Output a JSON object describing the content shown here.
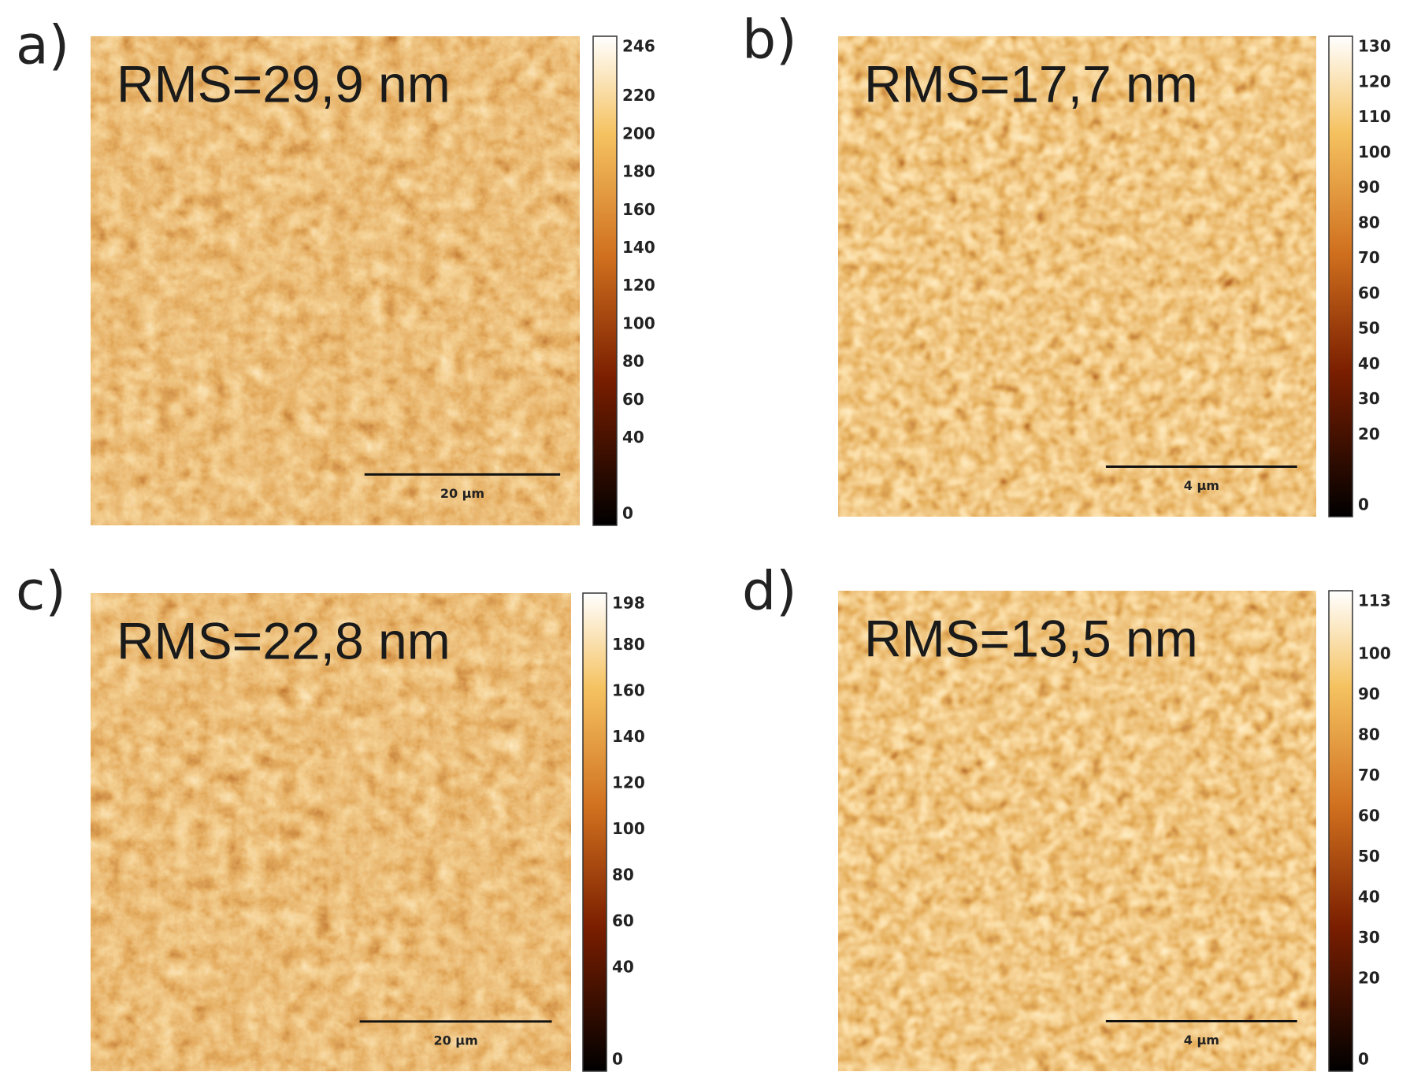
{
  "panels": [
    {
      "label": "a)",
      "rms": "RMS=29,9 nm",
      "scale_bar": "20 µm",
      "colorbar_ticks": [
        246,
        220,
        200,
        180,
        160,
        140,
        120,
        100,
        80,
        60,
        40,
        0
      ]
    },
    {
      "label": "b)",
      "rms": "RMS=17,7 nm",
      "scale_bar": "4 µm",
      "colorbar_ticks": [
        130,
        120,
        110,
        100,
        90,
        80,
        70,
        60,
        50,
        40,
        30,
        20,
        0
      ]
    },
    {
      "label": "c)",
      "rms": "RMS=22,8 nm",
      "scale_bar": "20 µm",
      "colorbar_ticks": [
        198,
        180,
        160,
        140,
        120,
        100,
        80,
        60,
        40,
        0
      ]
    },
    {
      "label": "d)",
      "rms": "RMS=13,5 nm",
      "scale_bar": "4 µm",
      "colorbar_ticks": [
        113,
        100,
        90,
        80,
        70,
        60,
        50,
        40,
        30,
        20,
        0
      ]
    }
  ]
}
